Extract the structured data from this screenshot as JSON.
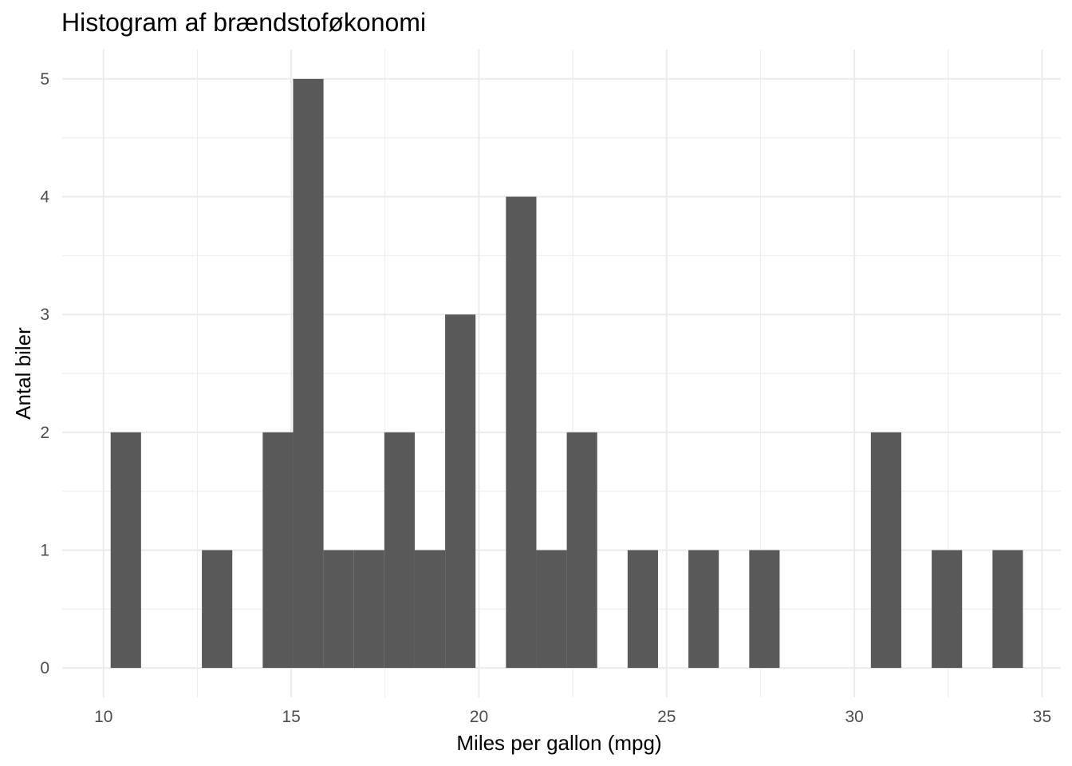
{
  "chart_data": {
    "type": "bar",
    "title": "Histogram af brændstoføkonomi",
    "xlabel": "Miles per gallon (mpg)",
    "ylabel": "Antal biler",
    "xlim": [
      8.9,
      35.5
    ],
    "ylim": [
      -0.25,
      5.25
    ],
    "grid": true,
    "bin_width": 0.81,
    "x_ticks": [
      10,
      15,
      20,
      25,
      30,
      35
    ],
    "y_ticks": [
      0,
      1,
      2,
      3,
      4,
      5
    ],
    "bins": [
      {
        "start": 10.19,
        "count": 2
      },
      {
        "start": 12.62,
        "count": 1
      },
      {
        "start": 14.24,
        "count": 2
      },
      {
        "start": 15.05,
        "count": 5
      },
      {
        "start": 15.86,
        "count": 1
      },
      {
        "start": 16.67,
        "count": 1
      },
      {
        "start": 17.48,
        "count": 2
      },
      {
        "start": 18.29,
        "count": 1
      },
      {
        "start": 19.1,
        "count": 3
      },
      {
        "start": 20.72,
        "count": 4
      },
      {
        "start": 21.53,
        "count": 1
      },
      {
        "start": 22.34,
        "count": 2
      },
      {
        "start": 23.96,
        "count": 1
      },
      {
        "start": 25.58,
        "count": 1
      },
      {
        "start": 27.2,
        "count": 1
      },
      {
        "start": 30.44,
        "count": 2
      },
      {
        "start": 32.06,
        "count": 1
      },
      {
        "start": 33.68,
        "count": 1
      }
    ],
    "bar_color": "#595959",
    "grid_color": "#ebebeb"
  }
}
